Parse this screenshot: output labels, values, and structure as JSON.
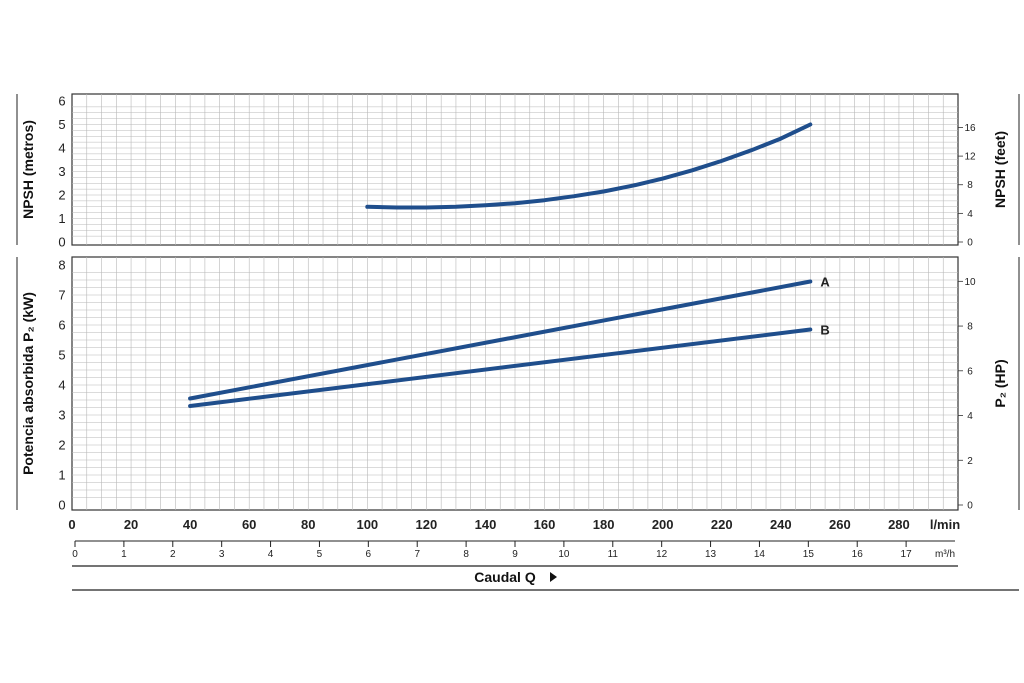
{
  "chart_data": [
    {
      "type": "line",
      "name": "npsh",
      "ylabel": "NPSH  (metros)",
      "ylabel_right": "NPSH  (feet)",
      "ylim": [
        0,
        6
      ],
      "y_ticks": [
        "0",
        "1",
        "2",
        "3",
        "4",
        "5",
        "6"
      ],
      "ylim_right": [
        0,
        19.7
      ],
      "y_ticks_right": [
        "0",
        "4",
        "8",
        "12",
        "16"
      ],
      "grid": true,
      "series": [
        {
          "color": "#1f4e8c",
          "x": [
            100,
            110,
            120,
            130,
            140,
            150,
            160,
            170,
            180,
            190,
            200,
            210,
            220,
            230,
            240,
            250
          ],
          "y": [
            1.5,
            1.47,
            1.47,
            1.5,
            1.56,
            1.65,
            1.78,
            1.95,
            2.15,
            2.4,
            2.7,
            3.05,
            3.45,
            3.9,
            4.4,
            5.0
          ]
        }
      ]
    },
    {
      "type": "line",
      "name": "power",
      "ylabel": "Potencia absorbida P₂  (kW)",
      "ylabel_right": "P₂  (HP)",
      "ylim": [
        0,
        8
      ],
      "y_ticks": [
        "0",
        "1",
        "2",
        "3",
        "4",
        "5",
        "6",
        "7",
        "8"
      ],
      "ylim_right": [
        0,
        10.73
      ],
      "y_ticks_right": [
        "0",
        "2",
        "4",
        "6",
        "8",
        "10"
      ],
      "grid": true,
      "series": [
        {
          "name": "A",
          "color": "#1f4e8c",
          "x": [
            40,
            250
          ],
          "y": [
            3.55,
            7.45
          ]
        },
        {
          "name": "B",
          "color": "#1f4e8c",
          "x": [
            40,
            250
          ],
          "y": [
            3.3,
            5.85
          ]
        }
      ]
    }
  ],
  "x_axis_lpm": {
    "unit": "l/min",
    "xlim": [
      0,
      300
    ],
    "ticks": [
      "0",
      "20",
      "40",
      "60",
      "80",
      "100",
      "120",
      "140",
      "160",
      "180",
      "200",
      "220",
      "240",
      "260",
      "280"
    ]
  },
  "x_axis_m3h": {
    "unit": "m³/h",
    "xlim": [
      0,
      18
    ],
    "ticks": [
      "0",
      "1",
      "2",
      "3",
      "4",
      "5",
      "6",
      "7",
      "8",
      "9",
      "10",
      "11",
      "12",
      "13",
      "14",
      "15",
      "16",
      "17"
    ]
  },
  "xlabel": "Caudal  Q"
}
